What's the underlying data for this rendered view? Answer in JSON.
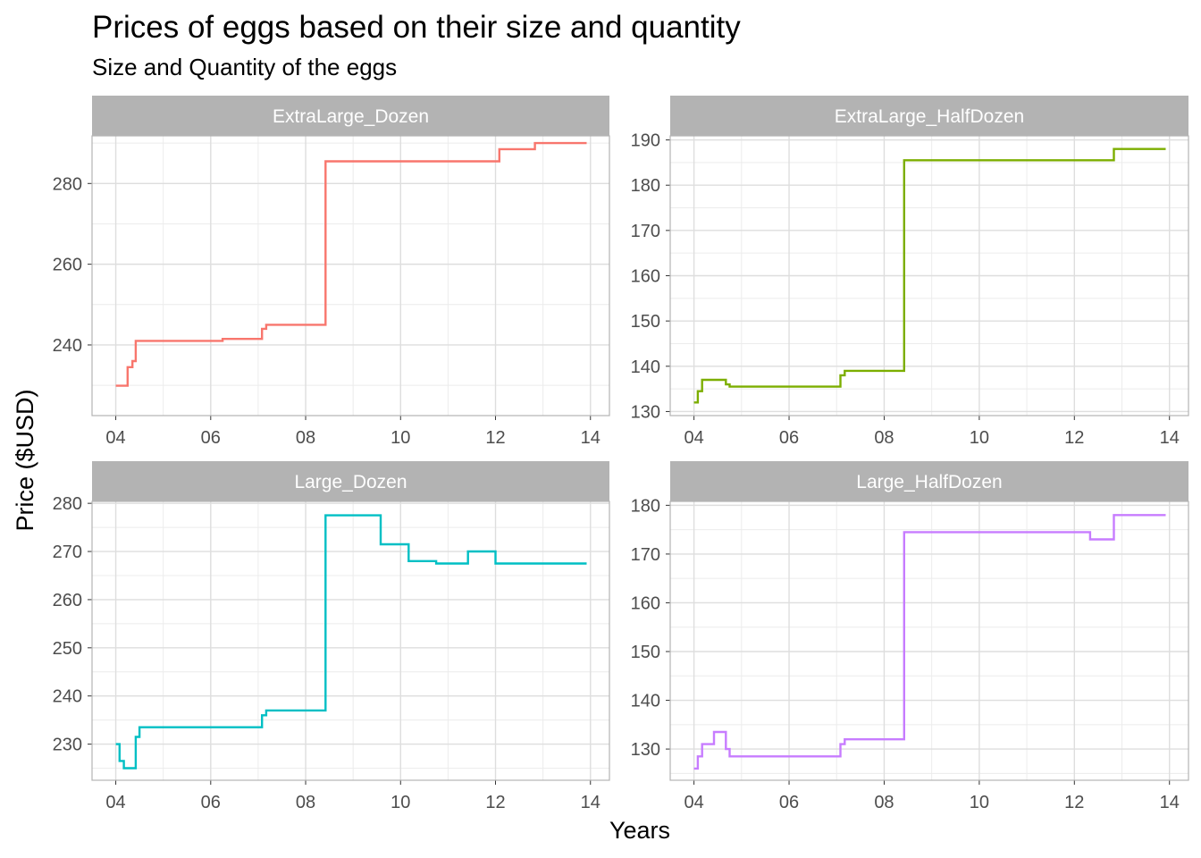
{
  "title": "Prices of eggs based on their size and quantity",
  "subtitle": "Size and Quantity of the eggs",
  "xlabel": "Years",
  "ylabel": "Price ($USD)",
  "chart_data": {
    "type": "line",
    "step": true,
    "title": "Prices of eggs based on their size and quantity",
    "subtitle": "Size and Quantity of the eggs",
    "xlabel": "Years",
    "ylabel": "Price ($USD)",
    "x_unit": "year",
    "x_ticks": [
      "04",
      "06",
      "08",
      "10",
      "12",
      "14"
    ],
    "grid": true,
    "legend": "none",
    "facets": [
      {
        "name": "ExtraLarge_Dozen",
        "color": "#F8766D",
        "xlim": [
          2003.5,
          2014.4
        ],
        "ylim": [
          222.5,
          291.8
        ],
        "y_ticks": [
          240,
          260,
          280
        ],
        "x": [
          2004.0,
          2004.25,
          2004.3,
          2004.35,
          2004.42,
          2006.17,
          2006.25,
          2007.0,
          2007.08,
          2007.17,
          2008.42,
          2012.08,
          2012.83,
          2013.92
        ],
        "y": [
          229.9,
          234.5,
          234.5,
          236.0,
          241.0,
          241.0,
          241.5,
          241.5,
          244.0,
          245.0,
          285.5,
          288.5,
          290.0,
          290.0
        ]
      },
      {
        "name": "ExtraLarge_HalfDozen",
        "color": "#7CAE00",
        "xlim": [
          2003.5,
          2014.4
        ],
        "ylim": [
          129.1,
          190.9
        ],
        "y_ticks": [
          130,
          140,
          150,
          160,
          170,
          180,
          190
        ],
        "x": [
          2004.0,
          2004.08,
          2004.17,
          2004.67,
          2004.75,
          2007.08,
          2007.17,
          2008.42,
          2012.83,
          2013.92
        ],
        "y": [
          132.0,
          134.5,
          137.0,
          136.0,
          135.5,
          138.0,
          139.0,
          185.5,
          188.0,
          188.0
        ]
      },
      {
        "name": "Large_Dozen",
        "color": "#00BFC4",
        "xlim": [
          2003.5,
          2014.4
        ],
        "ylim": [
          222.5,
          280.4
        ],
        "y_ticks": [
          230,
          240,
          250,
          260,
          270,
          280
        ],
        "x": [
          2004.0,
          2004.08,
          2004.17,
          2004.25,
          2004.42,
          2004.5,
          2007.0,
          2007.08,
          2007.17,
          2008.42,
          2009.58,
          2010.17,
          2010.75,
          2011.42,
          2012.0,
          2013.92
        ],
        "y": [
          230.0,
          226.5,
          225.0,
          225.0,
          231.5,
          233.5,
          233.5,
          236.0,
          237.0,
          277.5,
          271.5,
          268.0,
          267.5,
          270.0,
          267.5,
          267.5
        ]
      },
      {
        "name": "Large_HalfDozen",
        "color": "#C77CFF",
        "xlim": [
          2003.5,
          2014.4
        ],
        "ylim": [
          123.6,
          180.8
        ],
        "y_ticks": [
          130,
          140,
          150,
          160,
          170,
          180
        ],
        "x": [
          2004.0,
          2004.08,
          2004.17,
          2004.42,
          2004.67,
          2004.75,
          2007.08,
          2007.17,
          2008.42,
          2012.33,
          2012.83,
          2013.92
        ],
        "y": [
          126.0,
          128.5,
          131.0,
          133.5,
          130.0,
          128.5,
          131.0,
          132.0,
          174.5,
          173.0,
          178.0,
          178.0
        ]
      }
    ]
  }
}
